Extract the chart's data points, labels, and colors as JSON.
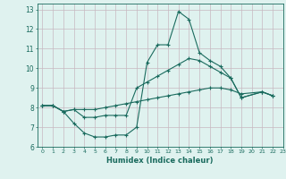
{
  "xlabel": "Humidex (Indice chaleur)",
  "background_color": "#dff2ef",
  "grid_color": "#c8b8c0",
  "line_color": "#1a6b5e",
  "xlim": [
    -0.5,
    23
  ],
  "ylim": [
    6,
    13.3
  ],
  "xticks": [
    0,
    1,
    2,
    3,
    4,
    5,
    6,
    7,
    8,
    9,
    10,
    11,
    12,
    13,
    14,
    15,
    16,
    17,
    18,
    19,
    20,
    21,
    22,
    23
  ],
  "yticks": [
    6,
    7,
    8,
    9,
    10,
    11,
    12,
    13
  ],
  "series1_x": [
    0,
    1,
    2,
    3,
    4,
    5,
    6,
    7,
    8,
    9,
    10,
    11,
    12,
    13,
    14,
    15,
    16,
    17,
    18,
    19,
    21,
    22
  ],
  "series1_y": [
    8.1,
    8.1,
    7.8,
    7.2,
    6.7,
    6.5,
    6.5,
    6.6,
    6.6,
    7.0,
    10.3,
    11.2,
    11.2,
    12.9,
    12.5,
    10.8,
    10.4,
    10.1,
    9.5,
    8.5,
    8.8,
    8.6
  ],
  "series2_x": [
    0,
    1,
    2,
    3,
    4,
    5,
    6,
    7,
    8,
    9,
    10,
    11,
    12,
    13,
    14,
    15,
    16,
    17,
    18,
    19,
    21,
    22
  ],
  "series2_y": [
    8.1,
    8.1,
    7.8,
    7.9,
    7.5,
    7.5,
    7.6,
    7.6,
    7.6,
    9.0,
    9.3,
    9.6,
    9.9,
    10.2,
    10.5,
    10.4,
    10.1,
    9.8,
    9.5,
    8.5,
    8.8,
    8.6
  ],
  "series3_x": [
    0,
    1,
    2,
    3,
    4,
    5,
    6,
    7,
    8,
    9,
    10,
    11,
    12,
    13,
    14,
    15,
    16,
    17,
    18,
    19,
    21,
    22
  ],
  "series3_y": [
    8.1,
    8.1,
    7.8,
    7.9,
    7.9,
    7.9,
    8.0,
    8.1,
    8.2,
    8.3,
    8.4,
    8.5,
    8.6,
    8.7,
    8.8,
    8.9,
    9.0,
    9.0,
    8.9,
    8.7,
    8.8,
    8.6
  ]
}
